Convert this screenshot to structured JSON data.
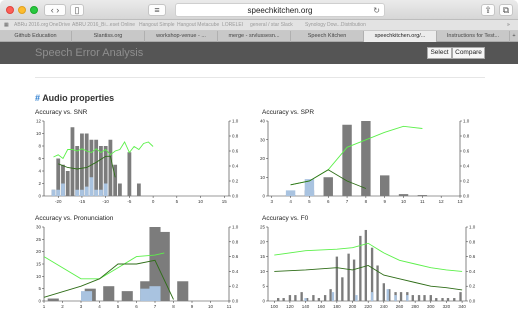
{
  "browser": {
    "url": "speechkitchen.org",
    "nav_back_icon": "chevron-left-icon",
    "nav_forward_icon": "chevron-right-icon",
    "bookmarks": [
      "ABRu 2016.org",
      "OneDrive",
      "ABRU 2016_Bi...eset Online",
      "Hangout Simple",
      "Hangout Metacube",
      "LORELEI",
      "general / star Slack",
      "Synology Dow...Distribution"
    ],
    "tabs": [
      {
        "label": "Github Education",
        "active": false
      },
      {
        "label": "Slantiss.org",
        "active": false
      },
      {
        "label": "workshop-venue - ...",
        "active": false
      },
      {
        "label": "merge - srvlussesn...",
        "active": false
      },
      {
        "label": "Speech Kitchen",
        "active": false
      },
      {
        "label": "speechkitchen.org/...",
        "active": true
      },
      {
        "label": "Instructions for Test...",
        "active": false
      }
    ]
  },
  "app": {
    "title": "Speech Error Analysis",
    "select_label": "Select",
    "compare_label": "Compare"
  },
  "section": {
    "hash": "#",
    "title": "Audio properties"
  },
  "colors": {
    "bar_gray": "#7c7c7c",
    "bar_blue": "#a9c3e0",
    "line_light": "#5cf04a",
    "line_dark": "#2f6d18"
  },
  "chart_data": [
    {
      "type": "bar",
      "title": "Accuracy vs. SNR",
      "xticks": [
        -20,
        -15,
        -10,
        -5,
        0,
        5,
        10,
        15
      ],
      "xlim": [
        -23,
        16
      ],
      "ylim": [
        0,
        12
      ],
      "yticks": [
        0,
        2,
        4,
        6,
        8,
        10,
        12
      ],
      "y2lim": [
        0,
        1.0
      ],
      "y2ticks": [
        0,
        0.2,
        0.4,
        0.6,
        0.8,
        1.0
      ],
      "bar_width": 0.8,
      "gray": {
        "x": [
          -21,
          -20,
          -19,
          -18,
          -17,
          -16,
          -15,
          -14,
          -13,
          -12,
          -11,
          -10,
          -9,
          -8,
          -7,
          -5,
          -3
        ],
        "values": [
          1,
          6,
          5,
          4,
          11,
          8,
          10,
          10,
          9,
          9,
          8,
          8,
          9,
          5,
          2,
          7,
          2
        ]
      },
      "blue": {
        "x": [
          -21,
          -20,
          -19,
          -16,
          -15,
          -14,
          -13,
          -12,
          -11,
          -10
        ],
        "values": [
          1,
          1,
          2,
          1,
          1,
          1.5,
          3,
          1,
          1,
          2
        ]
      },
      "line_light": {
        "x": [
          -21,
          -20,
          -19,
          -18,
          -17,
          -16,
          -15,
          -14,
          -13,
          -12,
          -11,
          -10,
          -9,
          -8,
          -7,
          -6,
          -5,
          -4,
          -3,
          -2,
          -1,
          0
        ],
        "values": [
          0.52,
          0.55,
          0.5,
          0.62,
          0.62,
          0.6,
          0.63,
          0.6,
          0.58,
          0.63,
          0.58,
          0.62,
          0.55,
          0.6,
          0.62,
          0.72,
          0.58,
          0.66,
          0.62,
          0.7,
          0.72,
          0.66
        ]
      },
      "line_dark": {
        "x": [
          -20,
          -18,
          -16,
          -14,
          -12,
          -10,
          -9,
          -8
        ],
        "values": [
          0.43,
          0.38,
          0.36,
          0.38,
          0.45,
          0.53,
          0.53,
          0.25
        ]
      }
    },
    {
      "type": "bar",
      "title": "Accuracy vs. SPR",
      "xticks": [
        3,
        4,
        5,
        6,
        7,
        8,
        9,
        10,
        11,
        12,
        13
      ],
      "xlim": [
        2.8,
        13
      ],
      "ylim": [
        0,
        40
      ],
      "yticks": [
        0,
        10,
        20,
        30,
        40
      ],
      "y2lim": [
        0,
        1.0
      ],
      "y2ticks": [
        0,
        0.2,
        0.4,
        0.6,
        0.8,
        1.0
      ],
      "bar_width": 0.5,
      "gray": {
        "x": [
          4,
          5,
          6,
          7,
          8,
          9,
          10,
          11
        ],
        "values": [
          0.5,
          3,
          10,
          38,
          40,
          11,
          1,
          0.5
        ]
      },
      "blue": {
        "x": [
          4,
          5
        ],
        "values": [
          3,
          9
        ]
      },
      "line_light": {
        "x": [
          4,
          5,
          6,
          7,
          8,
          9,
          10,
          11
        ],
        "values": [
          0.15,
          0.2,
          0.35,
          0.65,
          0.75,
          0.85,
          0.93,
          0.9
        ]
      },
      "line_dark": {
        "x": [
          4,
          5,
          6,
          7,
          8
        ],
        "values": [
          0.15,
          0.2,
          0.35,
          0.2,
          0.1
        ]
      }
    },
    {
      "type": "bar",
      "title": "Accuracy vs. Pronunciation",
      "xticks": [
        1,
        2,
        3,
        4,
        5,
        6,
        7,
        8,
        9,
        10,
        11
      ],
      "xlim": [
        1,
        11
      ],
      "ylim": [
        0,
        30
      ],
      "yticks": [
        0,
        5,
        10,
        15,
        20,
        25,
        30
      ],
      "y2lim": [
        0,
        1.0
      ],
      "y2ticks": [
        0,
        0.2,
        0.4,
        0.6,
        0.8,
        1.0
      ],
      "bar_width": 0.6,
      "gray": {
        "x": [
          1.5,
          3.5,
          4.5,
          5.5,
          6.5,
          7,
          7.5,
          8.5
        ],
        "values": [
          1,
          5,
          6,
          4,
          8,
          30,
          28,
          8
        ]
      },
      "blue": {
        "x": [
          3.3,
          6.5,
          7
        ],
        "values": [
          4,
          5,
          6
        ]
      },
      "line_light": {
        "x": [
          1,
          3,
          4,
          5,
          6,
          7,
          7.5
        ],
        "values": [
          0.6,
          0.3,
          0.3,
          0.45,
          0.6,
          0.62,
          0.65
        ]
      },
      "line_dark": {
        "x": [
          1,
          3,
          4,
          5,
          6,
          7,
          8
        ],
        "values": [
          0.05,
          0.2,
          0.3,
          0.5,
          0.5,
          0.55,
          0.02
        ]
      }
    },
    {
      "type": "bar",
      "title": "Accuracy vs. F0",
      "xticks": [
        100,
        120,
        140,
        160,
        180,
        200,
        220,
        240,
        260,
        280,
        300,
        320,
        340
      ],
      "xlim": [
        92,
        345
      ],
      "ylim": [
        0,
        25
      ],
      "yticks": [
        0,
        5,
        10,
        15,
        20,
        25
      ],
      "y2lim": [
        0,
        1.0
      ],
      "y2ticks": [
        0,
        0.2,
        0.4,
        0.6,
        0.8,
        1.0
      ],
      "bar_width": 3,
      "gray": {
        "x": [
          105,
          112,
          120,
          127,
          135,
          142,
          150,
          157,
          165,
          172,
          180,
          187,
          195,
          202,
          210,
          217,
          225,
          232,
          240,
          247,
          255,
          262,
          270,
          277,
          285,
          292,
          300,
          307,
          315,
          322,
          330,
          338
        ],
        "values": [
          1,
          1,
          2,
          2,
          3,
          1,
          2,
          1,
          2,
          4,
          15,
          8,
          16,
          14,
          22,
          24,
          18,
          12,
          6,
          4,
          3,
          3,
          3,
          2,
          2,
          2,
          2,
          1,
          1,
          1,
          1,
          3
        ]
      },
      "blue": {
        "x": [
          140,
          175,
          205,
          225,
          245,
          255,
          270
        ],
        "values": [
          1,
          3,
          2,
          3,
          4,
          2,
          2
        ]
      },
      "line_light": {
        "x": [
          100,
          140,
          180,
          200,
          220,
          240,
          260,
          280,
          300,
          320,
          340
        ],
        "values": [
          0.62,
          0.68,
          0.7,
          0.72,
          0.78,
          0.65,
          0.55,
          0.5,
          0.45,
          0.42,
          0.4
        ]
      },
      "line_dark": {
        "x": [
          100,
          140,
          180,
          200,
          220,
          240,
          260,
          280,
          300,
          320,
          340
        ],
        "values": [
          0.4,
          0.42,
          0.45,
          0.42,
          0.48,
          0.35,
          0.3,
          0.25,
          0.2,
          0.18,
          0.15
        ]
      }
    }
  ]
}
